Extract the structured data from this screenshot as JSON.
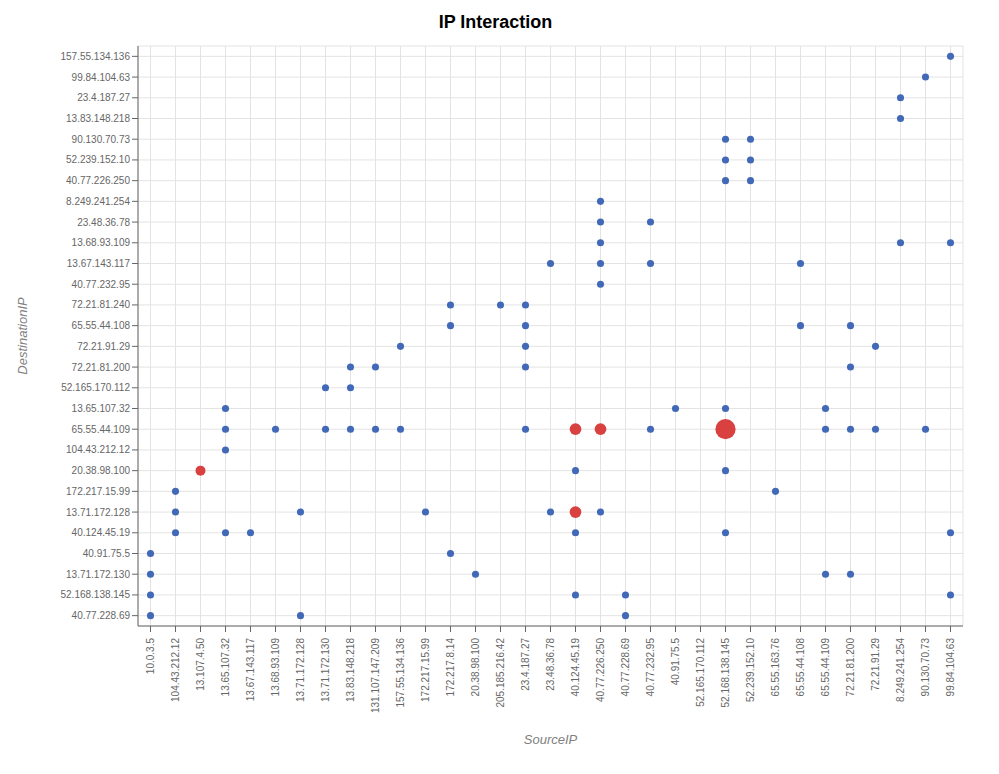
{
  "chart_data": {
    "type": "scatter",
    "title": "IP Interaction",
    "xlabel": "SourceIP",
    "ylabel": "DestinationIP",
    "grid": true,
    "categories": [
      "10.0.3.5",
      "104.43.212.12",
      "13.107.4.50",
      "13.65.107.32",
      "13.67.143.117",
      "13.68.93.109",
      "13.71.172.128",
      "13.71.172.130",
      "13.83.148.218",
      "131.107.147.209",
      "157.55.134.136",
      "172.217.15.99",
      "172.217.8.14",
      "20.38.98.100",
      "205.185.216.42",
      "23.4.187.27",
      "23.48.36.78",
      "40.124.45.19",
      "40.77.226.250",
      "40.77.228.69",
      "40.77.232.95",
      "40.91.75.5",
      "52.165.170.112",
      "52.168.138.145",
      "52.239.152.10",
      "65.55.163.76",
      "65.55.44.108",
      "65.55.44.109",
      "72.21.81.200",
      "72.21.91.29",
      "8.249.241.254",
      "90.130.70.73",
      "99.84.104.63"
    ],
    "y_categories": [
      "40.77.228.69",
      "52.168.138.145",
      "13.71.172.130",
      "40.91.75.5",
      "40.124.45.19",
      "13.71.172.128",
      "172.217.15.99",
      "20.38.98.100",
      "104.43.212.12",
      "65.55.44.109",
      "13.65.107.32",
      "52.165.170.112",
      "72.21.81.200",
      "72.21.91.29",
      "65.55.44.108",
      "72.21.81.240",
      "40.77.232.95",
      "13.67.143.117",
      "13.68.93.109",
      "23.48.36.78",
      "8.249.241.254",
      "40.77.226.250",
      "52.239.152.10",
      "90.130.70.73",
      "13.83.148.218",
      "23.4.187.27",
      "99.84.104.63",
      "157.55.134.136"
    ],
    "x": [
      "99.84.104.63",
      "90.130.70.73",
      "8.249.241.254",
      "8.249.241.254",
      "52.168.138.145",
      "52.168.138.145",
      "52.239.152.10",
      "52.239.152.10",
      "52.168.138.145",
      "52.239.152.10",
      "40.77.226.250",
      "40.77.232.95",
      "40.77.226.250",
      "40.77.226.250",
      "8.249.241.254",
      "99.84.104.63",
      "40.77.226.250",
      "40.77.232.95",
      "65.55.44.108",
      "23.48.36.78",
      "40.77.226.250",
      "205.185.216.42",
      "172.217.8.14",
      "23.4.187.27",
      "172.217.8.14",
      "23.4.187.27",
      "65.55.44.108",
      "72.21.81.200",
      "157.55.134.136",
      "23.4.187.27",
      "72.21.91.29",
      "13.83.148.218",
      "131.107.147.209",
      "23.4.187.27",
      "72.21.81.200",
      "13.71.172.130",
      "13.83.148.218",
      "13.65.107.32",
      "40.91.75.5",
      "65.55.44.109",
      "52.168.138.145",
      "13.65.107.32",
      "13.68.93.109",
      "13.71.172.130",
      "13.83.148.218",
      "131.107.147.209",
      "157.55.134.136",
      "23.4.187.27",
      "40.77.226.250",
      "40.77.232.95",
      "65.55.44.109",
      "72.21.81.200",
      "72.21.91.29",
      "90.130.70.73",
      "40.124.45.19",
      "52.168.138.145",
      "13.65.107.32",
      "20.38.98.100",
      "13.107.4.50",
      "40.124.45.19",
      "52.168.138.145",
      "65.55.163.76",
      "172.217.15.99",
      "40.77.226.250",
      "40.124.45.19",
      "104.43.212.12",
      "104.43.212.12",
      "13.67.143.117",
      "13.65.107.32",
      "52.168.138.145",
      "99.84.104.63",
      "40.124.45.19",
      "172.217.8.14",
      "10.0.3.5",
      "23.48.36.78",
      "10.0.3.5",
      "65.55.44.109",
      "72.21.81.200",
      "104.43.212.12",
      "13.71.172.128",
      "40.77.228.69",
      "10.0.3.5",
      "40.124.45.19",
      "10.0.3.5",
      "40.77.228.69",
      "99.84.104.63",
      "13.71.172.128"
    ],
    "y": [
      "157.55.134.136",
      "99.84.104.63",
      "23.4.187.27",
      "13.83.148.218",
      "90.130.70.73",
      "52.239.152.10",
      "90.130.70.73",
      "52.239.152.10",
      "40.77.226.250",
      "40.77.226.250",
      "8.249.241.254",
      "23.48.36.78",
      "23.48.36.78",
      "13.68.93.109",
      "13.68.93.109",
      "13.68.93.109",
      "13.67.143.117",
      "13.67.143.117",
      "13.67.143.117",
      "13.67.143.117",
      "40.77.232.95",
      "72.21.81.240",
      "72.21.81.240",
      "72.21.81.240",
      "65.55.44.108",
      "65.55.44.108",
      "65.55.44.108",
      "65.55.44.108",
      "72.21.91.29",
      "72.21.91.29",
      "72.21.91.29",
      "72.21.81.200",
      "72.21.81.200",
      "72.21.81.200",
      "72.21.81.200",
      "52.165.170.112",
      "52.165.170.112",
      "13.65.107.32",
      "13.65.107.32",
      "13.65.107.32",
      "13.65.107.32",
      "65.55.44.109",
      "65.55.44.109",
      "65.55.44.109",
      "65.55.44.109",
      "65.55.44.109",
      "65.55.44.109",
      "65.55.44.109",
      "65.55.44.109",
      "65.55.44.109",
      "65.55.44.109",
      "65.55.44.109",
      "65.55.44.109",
      "65.55.44.109",
      "65.55.44.109",
      "65.55.44.109",
      "104.43.212.12",
      "13.71.172.130",
      "20.38.98.100",
      "20.38.98.100",
      "20.38.98.100",
      "172.217.15.99",
      "13.71.172.128",
      "13.71.172.128",
      "13.71.172.128",
      "13.71.172.128",
      "40.124.45.19",
      "40.124.45.19",
      "40.124.45.19",
      "40.124.45.19",
      "40.124.45.19",
      "40.124.45.19",
      "40.91.75.5",
      "40.91.75.5",
      "13.71.172.128",
      "13.71.172.130",
      "13.71.172.130",
      "13.71.172.130",
      "172.217.15.99",
      "13.71.172.128",
      "52.168.138.145",
      "52.168.138.145",
      "52.168.138.145",
      "40.77.228.69",
      "40.77.228.69",
      "52.168.138.145",
      "40.77.228.69"
    ],
    "sizes": [
      1,
      1,
      1,
      1,
      1,
      1,
      1,
      1,
      1,
      1,
      1,
      1,
      1,
      1,
      1,
      1,
      1,
      1,
      1,
      1,
      1,
      1,
      1,
      1,
      1,
      1,
      1,
      1,
      1,
      1,
      1,
      1,
      1,
      1,
      1,
      1,
      1,
      1,
      1,
      1,
      1,
      1,
      1,
      1,
      1,
      1,
      1,
      1,
      8,
      1,
      1,
      1,
      1,
      1,
      8,
      30,
      1,
      1,
      5,
      1,
      1,
      1,
      1,
      1,
      8,
      1,
      1,
      1,
      1,
      1,
      1,
      1,
      1,
      1,
      1,
      1,
      1,
      1,
      1,
      1,
      1,
      1,
      1,
      1,
      1,
      1,
      1
    ],
    "colors": [
      "#4169b8",
      "#4169b8",
      "#4169b8",
      "#4169b8",
      "#4169b8",
      "#4169b8",
      "#4169b8",
      "#4169b8",
      "#4169b8",
      "#4169b8",
      "#4169b8",
      "#4169b8",
      "#4169b8",
      "#4169b8",
      "#4169b8",
      "#4169b8",
      "#4169b8",
      "#4169b8",
      "#4169b8",
      "#4169b8",
      "#4169b8",
      "#4169b8",
      "#4169b8",
      "#4169b8",
      "#4169b8",
      "#4169b8",
      "#4169b8",
      "#4169b8",
      "#4169b8",
      "#4169b8",
      "#4169b8",
      "#4169b8",
      "#4169b8",
      "#4169b8",
      "#4169b8",
      "#4169b8",
      "#4169b8",
      "#4169b8",
      "#4169b8",
      "#4169b8",
      "#4169b8",
      "#4169b8",
      "#4169b8",
      "#4169b8",
      "#4169b8",
      "#4169b8",
      "#4169b8",
      "#4169b8",
      "#d94040",
      "#4169b8",
      "#4169b8",
      "#4169b8",
      "#4169b8",
      "#4169b8",
      "#d94040",
      "#d94040",
      "#4169b8",
      "#4169b8",
      "#d94040",
      "#4169b8",
      "#4169b8",
      "#4169b8",
      "#4169b8",
      "#4169b8",
      "#d94040",
      "#4169b8",
      "#4169b8",
      "#4169b8",
      "#4169b8",
      "#4169b8",
      "#4169b8",
      "#4169b8",
      "#4169b8",
      "#4169b8",
      "#4169b8",
      "#4169b8",
      "#4169b8",
      "#4169b8",
      "#4169b8",
      "#4169b8",
      "#4169b8",
      "#4169b8",
      "#4169b8",
      "#4169b8",
      "#4169b8",
      "#4169b8",
      "#4169b8"
    ]
  }
}
